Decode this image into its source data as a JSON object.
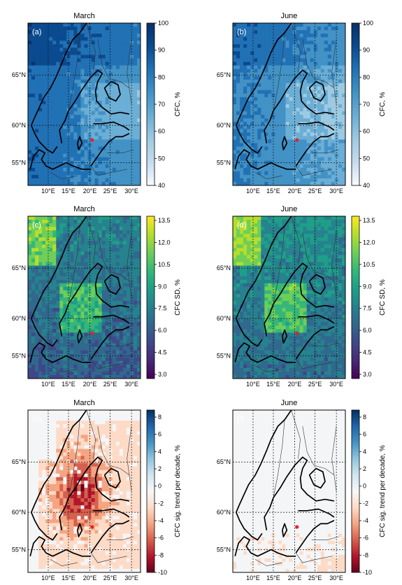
{
  "panels": [
    {
      "letter": "(a)",
      "title": "March",
      "field": "cfc",
      "scheme": "blues",
      "base": 62
    },
    {
      "letter": "(b)",
      "title": "June",
      "field": "cfc",
      "scheme": "blues",
      "base": 55
    },
    {
      "letter": "(c)",
      "title": "March",
      "field": "sd",
      "scheme": "viridis",
      "base": 0.55
    },
    {
      "letter": "(d)",
      "title": "June",
      "field": "sd",
      "scheme": "viridis",
      "base": 0.5
    },
    {
      "letter": "(e)",
      "title": "March",
      "field": "trend",
      "scheme": "rdbu",
      "base": -1
    },
    {
      "letter": "(f)",
      "title": "June",
      "field": "trend",
      "scheme": "rdbu",
      "base": 0
    }
  ],
  "colorbars": [
    {
      "label": "CFC, %",
      "ticks": [
        "100",
        "90",
        "80",
        "70",
        "60",
        "50",
        "40"
      ],
      "scheme": "blues"
    },
    {
      "label": "CFC, %",
      "ticks": [
        "100",
        "90",
        "80",
        "70",
        "60",
        "50",
        "40"
      ],
      "scheme": "blues"
    },
    {
      "label": "CFC SD, %",
      "ticks": [
        "13.5",
        "12.0",
        "10.5",
        "9.0",
        "7.5",
        "6.0",
        "4.5",
        "3.0"
      ],
      "scheme": "viridis"
    },
    {
      "label": "CFC SD, %",
      "ticks": [
        "13.5",
        "12.0",
        "10.5",
        "9.0",
        "7.5",
        "6.0",
        "4.5",
        "3.0"
      ],
      "scheme": "viridis"
    },
    {
      "label": "CFC sig. trend per decade, %",
      "ticks": [
        "8",
        "6",
        "4",
        "2",
        "0",
        "-2",
        "-4",
        "-6",
        "-8",
        "-10"
      ],
      "scheme": "rdbu"
    },
    {
      "label": "CFC sig. trend per decade, %",
      "ticks": [
        "8",
        "6",
        "4",
        "2",
        "0",
        "-2",
        "-4",
        "-6",
        "-8",
        "-10"
      ],
      "scheme": "rdbu"
    }
  ],
  "lat_ticks": [
    "65°N",
    "60°N",
    "55°N"
  ],
  "lon_ticks": [
    "10°E",
    "15°E",
    "20°E",
    "25°E",
    "30°E"
  ],
  "colors": {
    "marker": "#e8202a",
    "coast": "#000000",
    "grid": "#111111"
  }
}
